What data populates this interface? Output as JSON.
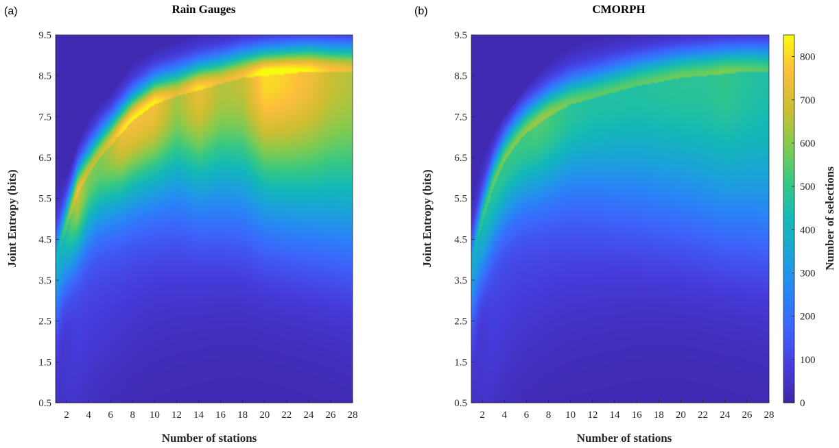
{
  "chart_data": [
    {
      "type": "heatmap",
      "panel_label": "(a)",
      "title": "Rain Gauges",
      "xlabel": "Number of stations",
      "ylabel": "Joint Entropy (bits)",
      "xlim": [
        1,
        28
      ],
      "ylim": [
        0.5,
        9.5
      ],
      "x_ticks": [
        "2",
        "4",
        "6",
        "8",
        "10",
        "12",
        "14",
        "16",
        "18",
        "20",
        "22",
        "24",
        "26",
        "28"
      ],
      "y_ticks": [
        "0.5",
        "1.5",
        "2.5",
        "3.5",
        "4.5",
        "5.5",
        "6.5",
        "7.5",
        "8.5",
        "9.5"
      ],
      "ridge": {
        "x": [
          1,
          2,
          3,
          4,
          5,
          6,
          7,
          8,
          10,
          12,
          14,
          16,
          18,
          20,
          22,
          24,
          26,
          28
        ],
        "y": [
          3.9,
          4.8,
          5.6,
          6.1,
          6.5,
          6.8,
          7.1,
          7.4,
          7.8,
          8.0,
          8.15,
          8.3,
          8.45,
          8.5,
          8.55,
          8.6,
          8.6,
          8.6
        ],
        "peak": [
          250,
          450,
          650,
          560,
          560,
          620,
          700,
          720,
          720,
          600,
          700,
          620,
          640,
          780,
          760,
          720,
          650,
          620
        ]
      },
      "upper_edge": {
        "x": [
          1,
          2,
          3,
          4,
          5,
          6,
          8,
          10,
          12,
          14,
          16,
          18,
          20,
          24,
          28
        ],
        "y": [
          5.9,
          6.0,
          6.8,
          7.4,
          7.8,
          8.0,
          8.8,
          9.1,
          9.3,
          9.5,
          9.5,
          9.5,
          9.5,
          9.5,
          9.5
        ]
      }
    },
    {
      "type": "heatmap",
      "panel_label": "(b)",
      "title": "CMORPH",
      "xlabel": "Number of stations",
      "ylabel": "Joint Entropy (bits)",
      "xlim": [
        1,
        28
      ],
      "ylim": [
        0.5,
        9.5
      ],
      "x_ticks": [
        "2",
        "4",
        "6",
        "8",
        "10",
        "12",
        "14",
        "16",
        "18",
        "20",
        "22",
        "24",
        "26",
        "28"
      ],
      "y_ticks": [
        "0.5",
        "1.5",
        "2.5",
        "3.5",
        "4.5",
        "5.5",
        "6.5",
        "7.5",
        "8.5",
        "9.5"
      ],
      "ridge": {
        "x": [
          1,
          2,
          3,
          4,
          5,
          6,
          7,
          8,
          10,
          12,
          14,
          16,
          18,
          20,
          22,
          24,
          26,
          28
        ],
        "y": [
          3.8,
          4.9,
          5.8,
          6.4,
          6.8,
          7.1,
          7.3,
          7.5,
          7.8,
          7.95,
          8.1,
          8.25,
          8.35,
          8.45,
          8.5,
          8.55,
          8.6,
          8.6
        ],
        "peak": [
          230,
          400,
          450,
          470,
          480,
          490,
          510,
          500,
          450,
          430,
          430,
          430,
          440,
          450,
          450,
          470,
          440,
          420
        ]
      },
      "upper_edge": {
        "x": [
          1,
          2,
          3,
          4,
          6,
          8,
          10,
          12,
          14,
          16,
          20,
          28
        ],
        "y": [
          5.5,
          6.5,
          7.1,
          7.5,
          8.2,
          8.8,
          9.2,
          9.4,
          9.5,
          9.5,
          9.5,
          9.5
        ]
      }
    }
  ],
  "colorbar": {
    "label": "Number of selections",
    "min": 0,
    "max": 850,
    "ticks": [
      "0",
      "100",
      "200",
      "300",
      "400",
      "500",
      "600",
      "700",
      "800"
    ],
    "colormap": "parula"
  }
}
